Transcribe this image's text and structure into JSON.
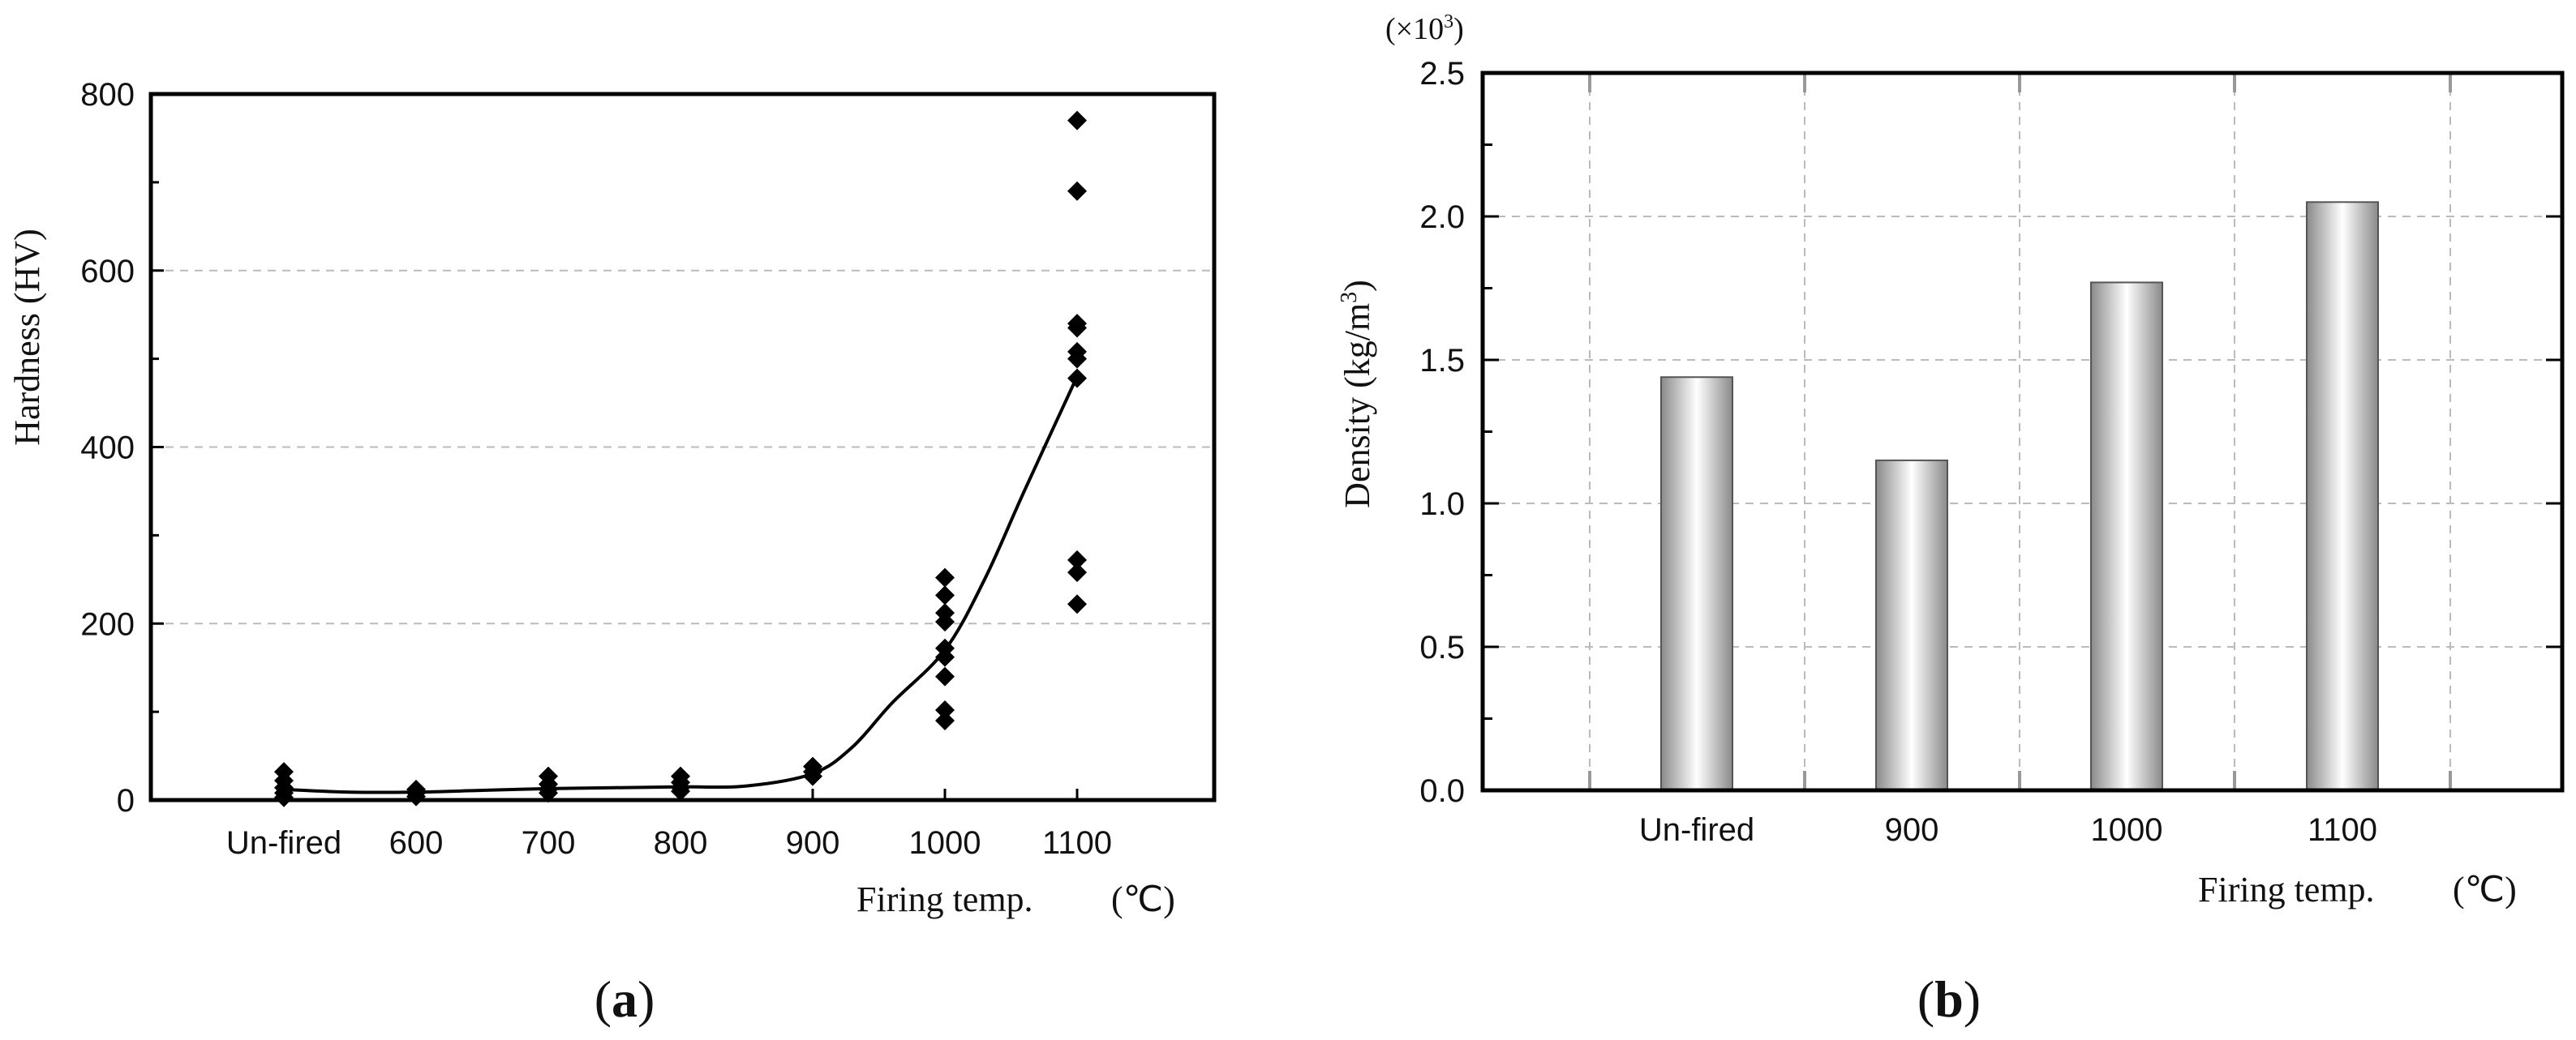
{
  "chart_data": [
    {
      "type": "scatter",
      "panel_label": "a",
      "xlabel": "Firing temp.",
      "xunit": "(℃)",
      "ylabel": "Hardness (HV)",
      "categories": [
        "Un-fired",
        "600",
        "700",
        "800",
        "900",
        "1000",
        "1100"
      ],
      "ylim": [
        0,
        800
      ],
      "yticks": [
        0,
        200,
        400,
        600,
        800
      ],
      "grid": true,
      "points": [
        [
          0,
          32
        ],
        [
          0,
          22
        ],
        [
          0,
          14
        ],
        [
          0,
          8
        ],
        [
          0,
          3
        ],
        [
          1,
          12
        ],
        [
          1,
          8
        ],
        [
          1,
          4
        ],
        [
          2,
          27
        ],
        [
          2,
          18
        ],
        [
          2,
          12
        ],
        [
          2,
          8
        ],
        [
          3,
          27
        ],
        [
          3,
          20
        ],
        [
          3,
          14
        ],
        [
          3,
          10
        ],
        [
          4,
          38
        ],
        [
          4,
          32
        ],
        [
          4,
          27
        ],
        [
          5,
          252
        ],
        [
          5,
          232
        ],
        [
          5,
          212
        ],
        [
          5,
          202
        ],
        [
          5,
          172
        ],
        [
          5,
          162
        ],
        [
          5,
          140
        ],
        [
          5,
          102
        ],
        [
          5,
          90
        ],
        [
          6,
          770
        ],
        [
          6,
          690
        ],
        [
          6,
          540
        ],
        [
          6,
          535
        ],
        [
          6,
          508
        ],
        [
          6,
          500
        ],
        [
          6,
          478
        ],
        [
          6,
          272
        ],
        [
          6,
          258
        ],
        [
          6,
          222
        ]
      ],
      "trend": [
        [
          0,
          12
        ],
        [
          0.5,
          9
        ],
        [
          1,
          9
        ],
        [
          1.5,
          11
        ],
        [
          2,
          13
        ],
        [
          2.5,
          14
        ],
        [
          3,
          15
        ],
        [
          3.5,
          16
        ],
        [
          4,
          30
        ],
        [
          4.3,
          60
        ],
        [
          4.6,
          110
        ],
        [
          5,
          170
        ],
        [
          5.3,
          250
        ],
        [
          5.6,
          350
        ],
        [
          6,
          480
        ]
      ]
    },
    {
      "type": "bar",
      "panel_label": "b",
      "xlabel": "Firing temp.",
      "xunit": "(℃)",
      "ylabel": "Density (kg/m",
      "ylabel_sup": "3",
      "ylabel_close": ")",
      "multiplier": "(×10",
      "multiplier_sup": "3",
      "multiplier_close": ")",
      "categories": [
        "Un-fired",
        "900",
        "1000",
        "1100"
      ],
      "values": [
        1.44,
        1.15,
        1.77,
        2.05
      ],
      "ylim": [
        0,
        2.5
      ],
      "yticks": [
        "0.0",
        "0.5",
        "1.0",
        "1.5",
        "2.0",
        "2.5"
      ],
      "grid": true
    }
  ]
}
